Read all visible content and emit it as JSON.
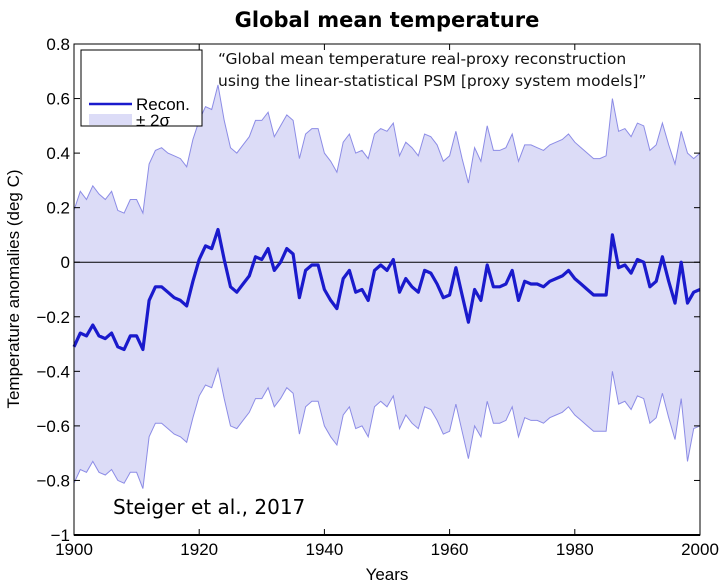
{
  "chart_data": {
    "type": "line",
    "title": "Global mean temperature",
    "xlabel": "Years",
    "ylabel": "Temperature anomalies (deg C)",
    "xlim": [
      1900,
      2000
    ],
    "ylim": [
      -1,
      0.8
    ],
    "xticks": [
      1900,
      1920,
      1940,
      1960,
      1980,
      2000
    ],
    "xtick_labels": [
      "1900",
      "1920",
      "1940",
      "1960",
      "1980",
      "2000"
    ],
    "yticks": [
      -1,
      -0.8,
      -0.6,
      -0.4,
      -0.2,
      0,
      0.2,
      0.4,
      0.6,
      0.8
    ],
    "ytick_labels": [
      "−1",
      "−0.8",
      "−0.6",
      "−0.4",
      "−0.2",
      "0",
      "0.2",
      "0.4",
      "0.6",
      "0.8"
    ],
    "grid": false,
    "zero_line": true,
    "legend": {
      "placement": "top-left",
      "entries": [
        {
          "label": "Recon.",
          "kind": "line",
          "color": "#1a1acc"
        },
        {
          "label": "± 2σ",
          "kind": "patch",
          "color": "#dcdcf7"
        }
      ]
    },
    "annotations": [
      {
        "text_line1": "“Global mean temperature real-proxy reconstruction",
        "text_line2": "using the linear-statistical PSM [proxy system models]”",
        "placement": "top"
      },
      {
        "text": "Steiger et al., 2017",
        "placement": "bottom-left"
      }
    ],
    "x": [
      1900,
      1901,
      1902,
      1903,
      1904,
      1905,
      1906,
      1907,
      1908,
      1909,
      1910,
      1911,
      1912,
      1913,
      1914,
      1915,
      1916,
      1917,
      1918,
      1919,
      1920,
      1921,
      1922,
      1923,
      1924,
      1925,
      1926,
      1927,
      1928,
      1929,
      1930,
      1931,
      1932,
      1933,
      1934,
      1935,
      1936,
      1937,
      1938,
      1939,
      1940,
      1941,
      1942,
      1943,
      1944,
      1945,
      1946,
      1947,
      1948,
      1949,
      1950,
      1951,
      1952,
      1953,
      1954,
      1955,
      1956,
      1957,
      1958,
      1959,
      1960,
      1961,
      1962,
      1963,
      1964,
      1965,
      1966,
      1967,
      1968,
      1969,
      1970,
      1971,
      1972,
      1973,
      1974,
      1975,
      1976,
      1977,
      1978,
      1979,
      1980,
      1981,
      1982,
      1983,
      1984,
      1985,
      1986,
      1987,
      1988,
      1989,
      1990,
      1991,
      1992,
      1993,
      1994,
      1995,
      1996,
      1997,
      1998,
      1999,
      2000
    ],
    "series": [
      {
        "name": "Recon.",
        "color": "#1a1acc",
        "values": [
          -0.31,
          -0.26,
          -0.27,
          -0.23,
          -0.27,
          -0.28,
          -0.26,
          -0.31,
          -0.32,
          -0.27,
          -0.27,
          -0.32,
          -0.14,
          -0.09,
          -0.09,
          -0.11,
          -0.13,
          -0.14,
          -0.16,
          -0.07,
          0.01,
          0.06,
          0.05,
          0.12,
          0.01,
          -0.09,
          -0.11,
          -0.08,
          -0.05,
          0.02,
          0.01,
          0.05,
          -0.03,
          0.0,
          0.05,
          0.03,
          -0.13,
          -0.03,
          -0.01,
          -0.01,
          -0.1,
          -0.14,
          -0.17,
          -0.06,
          -0.03,
          -0.11,
          -0.1,
          -0.14,
          -0.03,
          -0.01,
          -0.03,
          0.01,
          -0.11,
          -0.06,
          -0.09,
          -0.11,
          -0.03,
          -0.04,
          -0.08,
          -0.13,
          -0.12,
          -0.02,
          -0.12,
          -0.22,
          -0.1,
          -0.14,
          -0.01,
          -0.09,
          -0.09,
          -0.08,
          -0.03,
          -0.14,
          -0.07,
          -0.08,
          -0.08,
          -0.09,
          -0.07,
          -0.06,
          -0.05,
          -0.03,
          -0.06,
          -0.08,
          -0.1,
          -0.12,
          -0.12,
          -0.12,
          0.1,
          -0.02,
          -0.01,
          -0.04,
          0.01,
          0.0,
          -0.09,
          -0.07,
          0.02,
          -0.07,
          -0.15,
          0.0,
          -0.15,
          -0.11,
          -0.1
        ]
      },
      {
        "name": "± 2σ upper",
        "color": "#dcdcf7",
        "values": [
          0.19,
          0.26,
          0.23,
          0.28,
          0.25,
          0.23,
          0.26,
          0.19,
          0.18,
          0.23,
          0.23,
          0.18,
          0.36,
          0.41,
          0.42,
          0.4,
          0.39,
          0.38,
          0.35,
          0.45,
          0.52,
          0.57,
          0.56,
          0.65,
          0.52,
          0.42,
          0.4,
          0.43,
          0.46,
          0.52,
          0.52,
          0.55,
          0.46,
          0.5,
          0.54,
          0.52,
          0.38,
          0.47,
          0.49,
          0.49,
          0.4,
          0.37,
          0.33,
          0.44,
          0.47,
          0.4,
          0.41,
          0.38,
          0.47,
          0.49,
          0.48,
          0.51,
          0.39,
          0.44,
          0.42,
          0.39,
          0.47,
          0.46,
          0.43,
          0.37,
          0.39,
          0.48,
          0.38,
          0.29,
          0.42,
          0.37,
          0.5,
          0.41,
          0.41,
          0.42,
          0.47,
          0.37,
          0.43,
          0.43,
          0.42,
          0.41,
          0.43,
          0.44,
          0.45,
          0.47,
          0.44,
          0.42,
          0.4,
          0.38,
          0.38,
          0.39,
          0.6,
          0.48,
          0.49,
          0.46,
          0.51,
          0.5,
          0.41,
          0.43,
          0.51,
          0.43,
          0.36,
          0.48,
          0.4,
          0.38,
          0.4
        ]
      },
      {
        "name": "± 2σ lower",
        "color": "#dcdcf7",
        "values": [
          -0.81,
          -0.76,
          -0.77,
          -0.73,
          -0.77,
          -0.78,
          -0.76,
          -0.8,
          -0.81,
          -0.77,
          -0.77,
          -0.83,
          -0.64,
          -0.59,
          -0.59,
          -0.61,
          -0.63,
          -0.64,
          -0.66,
          -0.57,
          -0.49,
          -0.45,
          -0.46,
          -0.39,
          -0.5,
          -0.6,
          -0.61,
          -0.58,
          -0.55,
          -0.5,
          -0.5,
          -0.46,
          -0.53,
          -0.5,
          -0.46,
          -0.48,
          -0.63,
          -0.53,
          -0.51,
          -0.51,
          -0.6,
          -0.64,
          -0.67,
          -0.56,
          -0.53,
          -0.61,
          -0.6,
          -0.64,
          -0.53,
          -0.51,
          -0.53,
          -0.49,
          -0.61,
          -0.56,
          -0.59,
          -0.61,
          -0.53,
          -0.54,
          -0.58,
          -0.63,
          -0.62,
          -0.52,
          -0.62,
          -0.72,
          -0.6,
          -0.64,
          -0.51,
          -0.59,
          -0.59,
          -0.58,
          -0.53,
          -0.64,
          -0.57,
          -0.58,
          -0.58,
          -0.59,
          -0.57,
          -0.56,
          -0.55,
          -0.53,
          -0.56,
          -0.58,
          -0.6,
          -0.62,
          -0.62,
          -0.62,
          -0.4,
          -0.52,
          -0.51,
          -0.54,
          -0.49,
          -0.5,
          -0.59,
          -0.57,
          -0.48,
          -0.57,
          -0.65,
          -0.5,
          -0.73,
          -0.61,
          -0.6
        ]
      }
    ]
  }
}
